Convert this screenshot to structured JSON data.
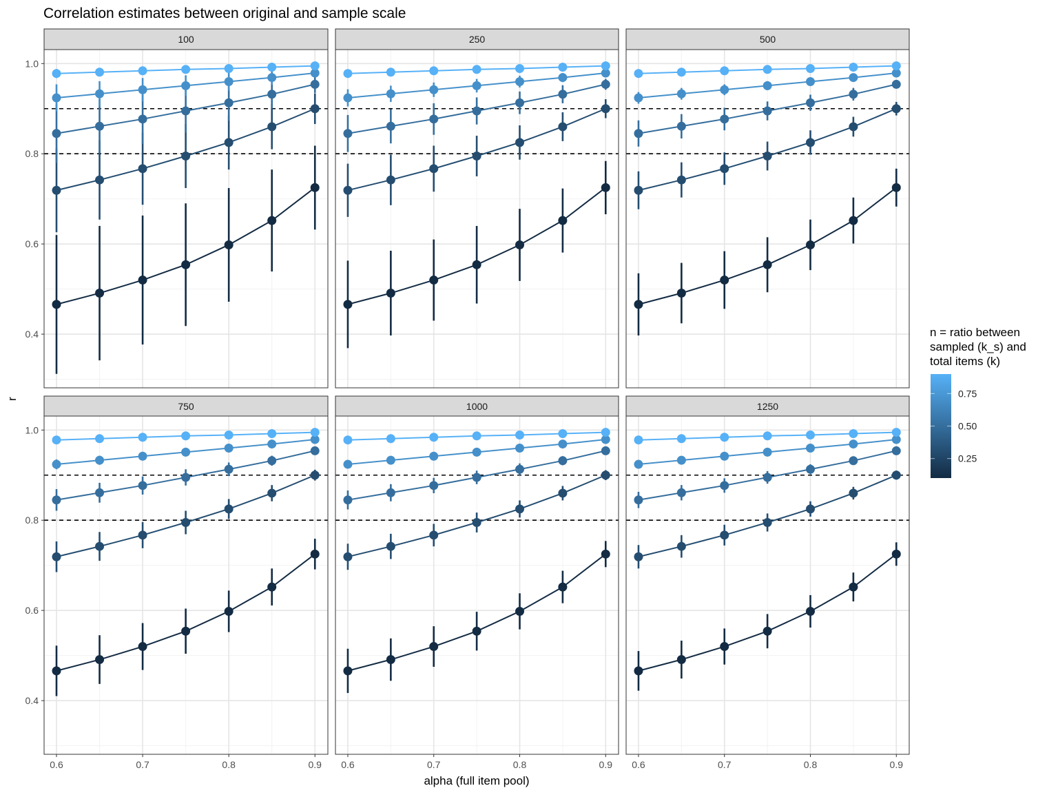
{
  "chart_data": {
    "type": "line",
    "title": "Correlation estimates between original and sample scale",
    "xlabel": "alpha (full item pool)",
    "ylabel": "r",
    "xlim": [
      0.5856,
      0.915
    ],
    "ylim": [
      0.281,
      1.031
    ],
    "x": [
      0.6,
      0.65,
      0.7,
      0.75,
      0.8,
      0.85,
      0.9
    ],
    "x_ticks": [
      "0.6",
      "0.7",
      "0.8",
      "0.9"
    ],
    "y_ticks": [
      "0.4",
      "0.6",
      "0.8",
      "1.0"
    ],
    "grid": true,
    "reference_lines": [
      0.8,
      0.9
    ],
    "legend": {
      "title_lines": [
        "n = ratio between",
        "sampled (k_s) and",
        "total items (k)"
      ],
      "position": "right",
      "type": "colorbar",
      "range": [
        0.1,
        0.9
      ],
      "ticks": [
        {
          "value": 0.25,
          "label": "0.25"
        },
        {
          "value": 0.5,
          "label": "0.50"
        },
        {
          "value": 0.75,
          "label": "0.75"
        }
      ],
      "low_color": "#132B43",
      "high_color": "#56B1F7"
    },
    "series": [
      {
        "n": 0.9,
        "values": [
          0.978,
          0.981,
          0.984,
          0.987,
          0.989,
          0.992,
          0.995
        ]
      },
      {
        "n": 0.7,
        "values": [
          0.924,
          0.933,
          0.942,
          0.951,
          0.96,
          0.969,
          0.979
        ]
      },
      {
        "n": 0.5,
        "values": [
          0.845,
          0.861,
          0.877,
          0.895,
          0.913,
          0.932,
          0.954
        ]
      },
      {
        "n": 0.3,
        "values": [
          0.719,
          0.742,
          0.767,
          0.795,
          0.825,
          0.86,
          0.9
        ]
      },
      {
        "n": 0.1,
        "values": [
          0.466,
          0.491,
          0.52,
          0.554,
          0.598,
          0.652,
          0.725
        ]
      }
    ],
    "facets": [
      {
        "label": "100",
        "error_halfwidth": [
          [
            0.01,
            0.009,
            0.008,
            0.007,
            0.005,
            0.004,
            0.002
          ],
          [
            0.03,
            0.028,
            0.026,
            0.023,
            0.02,
            0.016,
            0.01
          ],
          [
            0.065,
            0.06,
            0.055,
            0.048,
            0.04,
            0.031,
            0.019
          ],
          [
            0.093,
            0.088,
            0.08,
            0.071,
            0.06,
            0.05,
            0.034
          ],
          [
            0.154,
            0.149,
            0.143,
            0.136,
            0.126,
            0.113,
            0.093
          ]
        ]
      },
      {
        "label": "250",
        "error_halfwidth": [
          [
            0.006,
            0.006,
            0.005,
            0.004,
            0.003,
            0.003,
            0.001
          ],
          [
            0.019,
            0.018,
            0.016,
            0.015,
            0.013,
            0.01,
            0.006
          ],
          [
            0.041,
            0.038,
            0.035,
            0.03,
            0.025,
            0.02,
            0.012
          ],
          [
            0.059,
            0.056,
            0.051,
            0.045,
            0.038,
            0.032,
            0.021
          ],
          [
            0.097,
            0.094,
            0.09,
            0.086,
            0.08,
            0.071,
            0.059
          ]
        ]
      },
      {
        "label": "500",
        "error_halfwidth": [
          [
            0.004,
            0.004,
            0.004,
            0.003,
            0.002,
            0.002,
            0.001
          ],
          [
            0.013,
            0.013,
            0.012,
            0.01,
            0.009,
            0.007,
            0.004
          ],
          [
            0.029,
            0.027,
            0.025,
            0.021,
            0.018,
            0.014,
            0.008
          ],
          [
            0.042,
            0.039,
            0.036,
            0.032,
            0.027,
            0.022,
            0.015
          ],
          [
            0.069,
            0.067,
            0.064,
            0.061,
            0.056,
            0.051,
            0.042
          ]
        ]
      },
      {
        "label": "750",
        "error_halfwidth": [
          [
            0.004,
            0.003,
            0.003,
            0.003,
            0.002,
            0.001,
            0.001
          ],
          [
            0.011,
            0.01,
            0.009,
            0.008,
            0.007,
            0.006,
            0.004
          ],
          [
            0.024,
            0.022,
            0.02,
            0.018,
            0.015,
            0.011,
            0.007
          ],
          [
            0.034,
            0.032,
            0.029,
            0.026,
            0.022,
            0.018,
            0.012
          ],
          [
            0.056,
            0.054,
            0.052,
            0.05,
            0.046,
            0.041,
            0.034
          ]
        ]
      },
      {
        "label": "1000",
        "error_halfwidth": [
          [
            0.003,
            0.003,
            0.003,
            0.002,
            0.002,
            0.001,
            0.001
          ],
          [
            0.009,
            0.009,
            0.008,
            0.007,
            0.006,
            0.005,
            0.003
          ],
          [
            0.021,
            0.019,
            0.017,
            0.015,
            0.013,
            0.01,
            0.006
          ],
          [
            0.029,
            0.028,
            0.025,
            0.022,
            0.019,
            0.016,
            0.011
          ],
          [
            0.049,
            0.047,
            0.045,
            0.043,
            0.04,
            0.036,
            0.029
          ]
        ]
      },
      {
        "label": "1250",
        "error_halfwidth": [
          [
            0.003,
            0.003,
            0.002,
            0.002,
            0.001,
            0.001,
            0.001
          ],
          [
            0.008,
            0.008,
            0.007,
            0.007,
            0.006,
            0.005,
            0.003
          ],
          [
            0.018,
            0.017,
            0.016,
            0.014,
            0.011,
            0.009,
            0.005
          ],
          [
            0.026,
            0.025,
            0.023,
            0.02,
            0.017,
            0.014,
            0.01
          ],
          [
            0.044,
            0.042,
            0.04,
            0.038,
            0.036,
            0.032,
            0.026
          ]
        ]
      }
    ]
  }
}
